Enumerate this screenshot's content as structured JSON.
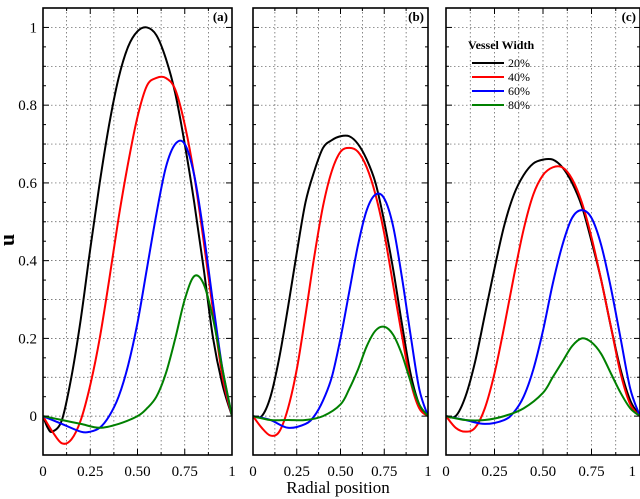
{
  "chart_data": {
    "type": "line",
    "ylabel": "u",
    "xlabel": "Radial position",
    "ylim": [
      -0.1,
      1.05
    ],
    "yticks": [
      "0",
      "0.2",
      "0.4",
      "0.6",
      "0.8",
      "1"
    ],
    "xticks": [
      "0",
      "0.25",
      "0.50",
      "0.75",
      "1"
    ],
    "grid": true,
    "legend": {
      "title": "Vessel Width",
      "placement": "top-left of panel (c)",
      "entries": [
        {
          "name": "20%",
          "color": "#000000"
        },
        {
          "name": "40%",
          "color": "#ff0000"
        },
        {
          "name": "60%",
          "color": "#0000ff"
        },
        {
          "name": "80%",
          "color": "#008000"
        }
      ]
    },
    "panels": [
      {
        "label": "(a)",
        "xlim": [
          0,
          1
        ],
        "series": [
          {
            "name": "20%",
            "color": "#000000",
            "x": [
              0,
              0.025,
              0.05,
              0.1,
              0.15,
              0.2,
              0.25,
              0.3,
              0.35,
              0.4,
              0.45,
              0.5,
              0.55,
              0.6,
              0.65,
              0.7,
              0.75,
              0.8,
              0.85,
              0.9,
              0.95,
              1.0
            ],
            "y": [
              0,
              -0.03,
              -0.04,
              -0.01,
              0.1,
              0.25,
              0.43,
              0.6,
              0.75,
              0.87,
              0.95,
              0.99,
              1.0,
              0.98,
              0.92,
              0.83,
              0.7,
              0.55,
              0.38,
              0.2,
              0.08,
              0.0
            ]
          },
          {
            "name": "40%",
            "color": "#ff0000",
            "x": [
              0,
              0.05,
              0.1,
              0.15,
              0.2,
              0.25,
              0.3,
              0.35,
              0.4,
              0.45,
              0.5,
              0.55,
              0.6,
              0.65,
              0.7,
              0.75,
              0.8,
              0.85,
              0.9,
              0.95,
              1.0
            ],
            "y": [
              0,
              -0.04,
              -0.07,
              -0.06,
              -0.01,
              0.08,
              0.2,
              0.35,
              0.51,
              0.65,
              0.77,
              0.85,
              0.87,
              0.87,
              0.84,
              0.75,
              0.62,
              0.45,
              0.27,
              0.1,
              0.0
            ]
          },
          {
            "name": "60%",
            "color": "#0000ff",
            "x": [
              0,
              0.1,
              0.2,
              0.25,
              0.3,
              0.35,
              0.4,
              0.45,
              0.5,
              0.55,
              0.6,
              0.65,
              0.7,
              0.75,
              0.8,
              0.85,
              0.9,
              0.95,
              1.0
            ],
            "y": [
              0,
              -0.02,
              -0.04,
              -0.04,
              -0.03,
              0.0,
              0.05,
              0.13,
              0.24,
              0.38,
              0.52,
              0.64,
              0.7,
              0.7,
              0.62,
              0.47,
              0.29,
              0.12,
              0.0
            ]
          },
          {
            "name": "80%",
            "color": "#008000",
            "x": [
              0,
              0.1,
              0.2,
              0.3,
              0.4,
              0.5,
              0.55,
              0.6,
              0.65,
              0.7,
              0.75,
              0.8,
              0.85,
              0.9,
              0.95,
              1.0
            ],
            "y": [
              0,
              -0.01,
              -0.02,
              -0.03,
              -0.02,
              0.0,
              0.02,
              0.05,
              0.11,
              0.2,
              0.3,
              0.36,
              0.34,
              0.25,
              0.12,
              0.0
            ]
          }
        ]
      },
      {
        "label": "(b)",
        "xlim": [
          0,
          1
        ],
        "series": [
          {
            "name": "20%",
            "color": "#000000",
            "x": [
              0,
              0.05,
              0.1,
              0.15,
              0.2,
              0.25,
              0.3,
              0.35,
              0.4,
              0.45,
              0.5,
              0.55,
              0.6,
              0.65,
              0.7,
              0.75,
              0.8,
              0.85,
              0.9,
              0.95,
              1.0
            ],
            "y": [
              0,
              0.0,
              0.05,
              0.15,
              0.28,
              0.42,
              0.55,
              0.63,
              0.69,
              0.71,
              0.72,
              0.72,
              0.7,
              0.66,
              0.6,
              0.5,
              0.38,
              0.24,
              0.11,
              0.03,
              0.0
            ]
          },
          {
            "name": "40%",
            "color": "#ff0000",
            "x": [
              0,
              0.05,
              0.1,
              0.15,
              0.2,
              0.25,
              0.3,
              0.35,
              0.4,
              0.45,
              0.5,
              0.55,
              0.6,
              0.65,
              0.7,
              0.75,
              0.8,
              0.85,
              0.9,
              0.95,
              1.0
            ],
            "y": [
              0,
              -0.03,
              -0.05,
              -0.04,
              0.02,
              0.12,
              0.26,
              0.41,
              0.54,
              0.63,
              0.68,
              0.69,
              0.68,
              0.64,
              0.57,
              0.47,
              0.34,
              0.21,
              0.09,
              0.02,
              0.0
            ]
          },
          {
            "name": "60%",
            "color": "#0000ff",
            "x": [
              0,
              0.1,
              0.2,
              0.3,
              0.35,
              0.4,
              0.45,
              0.5,
              0.55,
              0.6,
              0.65,
              0.7,
              0.75,
              0.8,
              0.85,
              0.9,
              0.95,
              1.0
            ],
            "y": [
              0,
              -0.01,
              -0.03,
              -0.02,
              0.0,
              0.04,
              0.1,
              0.2,
              0.32,
              0.44,
              0.53,
              0.57,
              0.56,
              0.49,
              0.36,
              0.21,
              0.07,
              0.0
            ]
          },
          {
            "name": "80%",
            "color": "#008000",
            "x": [
              0,
              0.1,
              0.2,
              0.3,
              0.4,
              0.5,
              0.55,
              0.6,
              0.65,
              0.7,
              0.75,
              0.8,
              0.85,
              0.9,
              0.95,
              1.0
            ],
            "y": [
              0,
              -0.01,
              -0.01,
              -0.01,
              0.0,
              0.03,
              0.07,
              0.12,
              0.18,
              0.22,
              0.23,
              0.21,
              0.16,
              0.09,
              0.03,
              0.0
            ]
          }
        ]
      },
      {
        "label": "(c)",
        "xlim": [
          0,
          1
        ],
        "series": [
          {
            "name": "20%",
            "color": "#000000",
            "x": [
              0,
              0.05,
              0.1,
              0.15,
              0.2,
              0.25,
              0.3,
              0.35,
              0.4,
              0.45,
              0.5,
              0.55,
              0.6,
              0.65,
              0.7,
              0.75,
              0.8,
              0.85,
              0.9,
              0.95,
              1.0
            ],
            "y": [
              0,
              0.0,
              0.05,
              0.14,
              0.26,
              0.38,
              0.49,
              0.57,
              0.62,
              0.65,
              0.66,
              0.66,
              0.64,
              0.6,
              0.54,
              0.45,
              0.35,
              0.23,
              0.12,
              0.04,
              0.0
            ]
          },
          {
            "name": "40%",
            "color": "#ff0000",
            "x": [
              0,
              0.05,
              0.1,
              0.15,
              0.2,
              0.25,
              0.3,
              0.35,
              0.4,
              0.45,
              0.5,
              0.55,
              0.6,
              0.65,
              0.7,
              0.75,
              0.8,
              0.85,
              0.9,
              0.95,
              1.0
            ],
            "y": [
              0,
              -0.03,
              -0.04,
              -0.03,
              0.02,
              0.11,
              0.23,
              0.36,
              0.48,
              0.57,
              0.62,
              0.64,
              0.64,
              0.61,
              0.55,
              0.46,
              0.35,
              0.23,
              0.11,
              0.03,
              0.0
            ]
          },
          {
            "name": "60%",
            "color": "#0000ff",
            "x": [
              0,
              0.1,
              0.2,
              0.3,
              0.35,
              0.4,
              0.45,
              0.5,
              0.55,
              0.6,
              0.65,
              0.7,
              0.75,
              0.8,
              0.85,
              0.9,
              0.95,
              1.0
            ],
            "y": [
              0,
              -0.01,
              -0.02,
              -0.01,
              0.01,
              0.05,
              0.12,
              0.22,
              0.34,
              0.44,
              0.51,
              0.53,
              0.51,
              0.44,
              0.33,
              0.2,
              0.07,
              0.0
            ]
          },
          {
            "name": "80%",
            "color": "#008000",
            "x": [
              0,
              0.1,
              0.2,
              0.3,
              0.4,
              0.5,
              0.55,
              0.6,
              0.65,
              0.7,
              0.75,
              0.8,
              0.85,
              0.9,
              0.95,
              1.0
            ],
            "y": [
              0,
              -0.01,
              -0.01,
              0.0,
              0.02,
              0.06,
              0.1,
              0.14,
              0.18,
              0.2,
              0.19,
              0.16,
              0.11,
              0.06,
              0.02,
              0.0
            ]
          }
        ]
      }
    ]
  }
}
